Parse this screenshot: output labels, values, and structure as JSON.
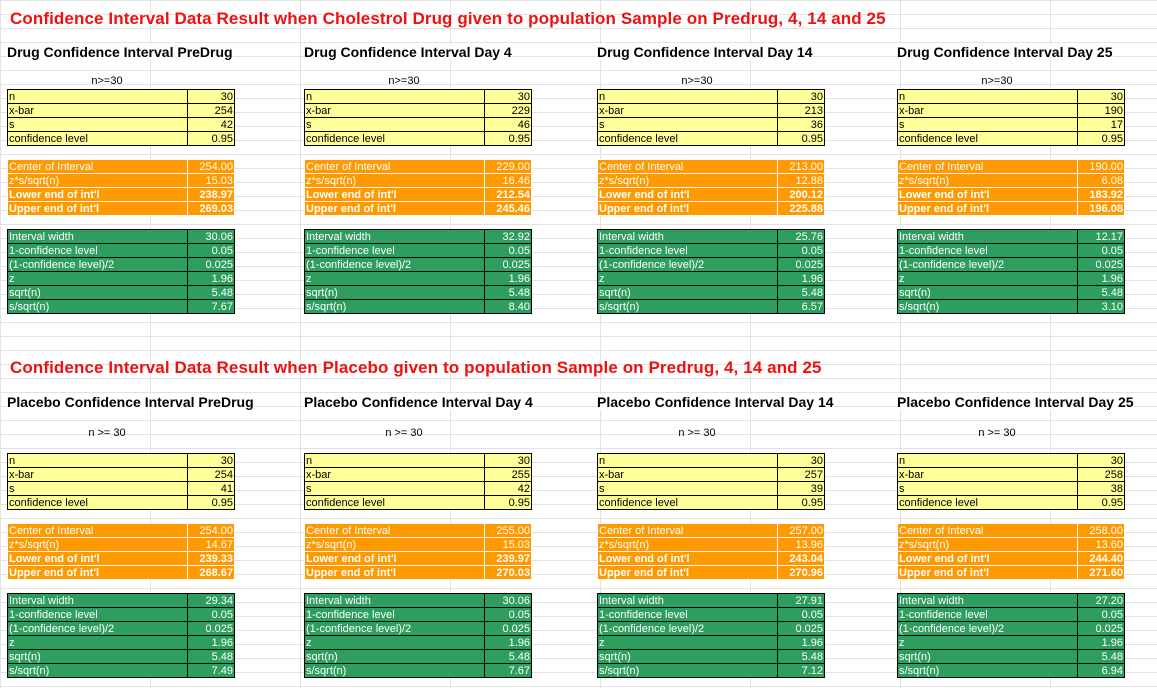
{
  "top_title": "Confidence Interval Data Result when Cholestrol Drug given to population Sample on Predrug, 4, 14 and 25",
  "bottom_title": "Confidence Interval Data Result when Placebo given to population Sample on Predrug, 4, 14 and 25",
  "labels": {
    "input": [
      "n",
      "x-bar",
      "s",
      "confidence level"
    ],
    "interval": [
      "Center of Interval",
      "z*s/sqrt(n)",
      "Lower end of int'l",
      "Upper end of int'l"
    ],
    "width": [
      "Interval width",
      "1-confidence level",
      "(1-confidence level)/2",
      "z",
      "sqrt(n)",
      "s/sqrt(n)"
    ]
  },
  "drug": [
    {
      "heading": "Drug Confidence Interval PreDrug",
      "n_note": "n>=30",
      "input": [
        "30",
        "254",
        "42",
        "0.95"
      ],
      "interval": [
        "254.00",
        "15.03",
        "238.97",
        "269.03"
      ],
      "width": [
        "30.06",
        "0.05",
        "0.025",
        "1.96",
        "5.48",
        "7.67"
      ]
    },
    {
      "heading": "Drug Confidence Interval Day 4",
      "n_note": "n>=30",
      "input": [
        "30",
        "229",
        "46",
        "0.95"
      ],
      "interval": [
        "229.00",
        "16.46",
        "212.54",
        "245.46"
      ],
      "width": [
        "32.92",
        "0.05",
        "0.025",
        "1.96",
        "5.48",
        "8.40"
      ]
    },
    {
      "heading": "Drug Confidence Interval Day 14",
      "n_note": "n>=30",
      "input": [
        "30",
        "213",
        "36",
        "0.95"
      ],
      "interval": [
        "213.00",
        "12.88",
        "200.12",
        "225.88"
      ],
      "width": [
        "25.76",
        "0.05",
        "0.025",
        "1.96",
        "5.48",
        "6.57"
      ]
    },
    {
      "heading": "Drug Confidence Interval Day 25",
      "n_note": "n>=30",
      "input": [
        "30",
        "190",
        "17",
        "0.95"
      ],
      "interval": [
        "190.00",
        "6.08",
        "183.92",
        "196.08"
      ],
      "width": [
        "12.17",
        "0.05",
        "0.025",
        "1.96",
        "5.48",
        "3.10"
      ]
    }
  ],
  "placebo": [
    {
      "heading": "Placebo Confidence Interval PreDrug",
      "n_note": "n >= 30",
      "input": [
        "30",
        "254",
        "41",
        "0.95"
      ],
      "interval": [
        "254.00",
        "14.67",
        "239.33",
        "268.67"
      ],
      "width": [
        "29.34",
        "0.05",
        "0.025",
        "1.96",
        "5.48",
        "7.49"
      ]
    },
    {
      "heading": "Placebo Confidence Interval Day 4",
      "n_note": "n >= 30",
      "input": [
        "30",
        "255",
        "42",
        "0.95"
      ],
      "interval": [
        "255.00",
        "15.03",
        "239.97",
        "270.03"
      ],
      "width": [
        "30.06",
        "0.05",
        "0.025",
        "1.96",
        "5.48",
        "7.67"
      ]
    },
    {
      "heading": "Placebo Confidence Interval Day 14",
      "n_note": "n >= 30",
      "input": [
        "30",
        "257",
        "39",
        "0.95"
      ],
      "interval": [
        "257.00",
        "13.96",
        "243.04",
        "270.96"
      ],
      "width": [
        "27.91",
        "0.05",
        "0.025",
        "1.96",
        "5.48",
        "7.12"
      ]
    },
    {
      "heading": "Placebo Confidence Interval Day 25",
      "n_note": "n >= 30",
      "input": [
        "30",
        "258",
        "38",
        "0.95"
      ],
      "interval": [
        "258.00",
        "13.60",
        "244.40",
        "271.60"
      ],
      "width": [
        "27.20",
        "0.05",
        "0.025",
        "1.96",
        "5.48",
        "6.94"
      ]
    }
  ]
}
